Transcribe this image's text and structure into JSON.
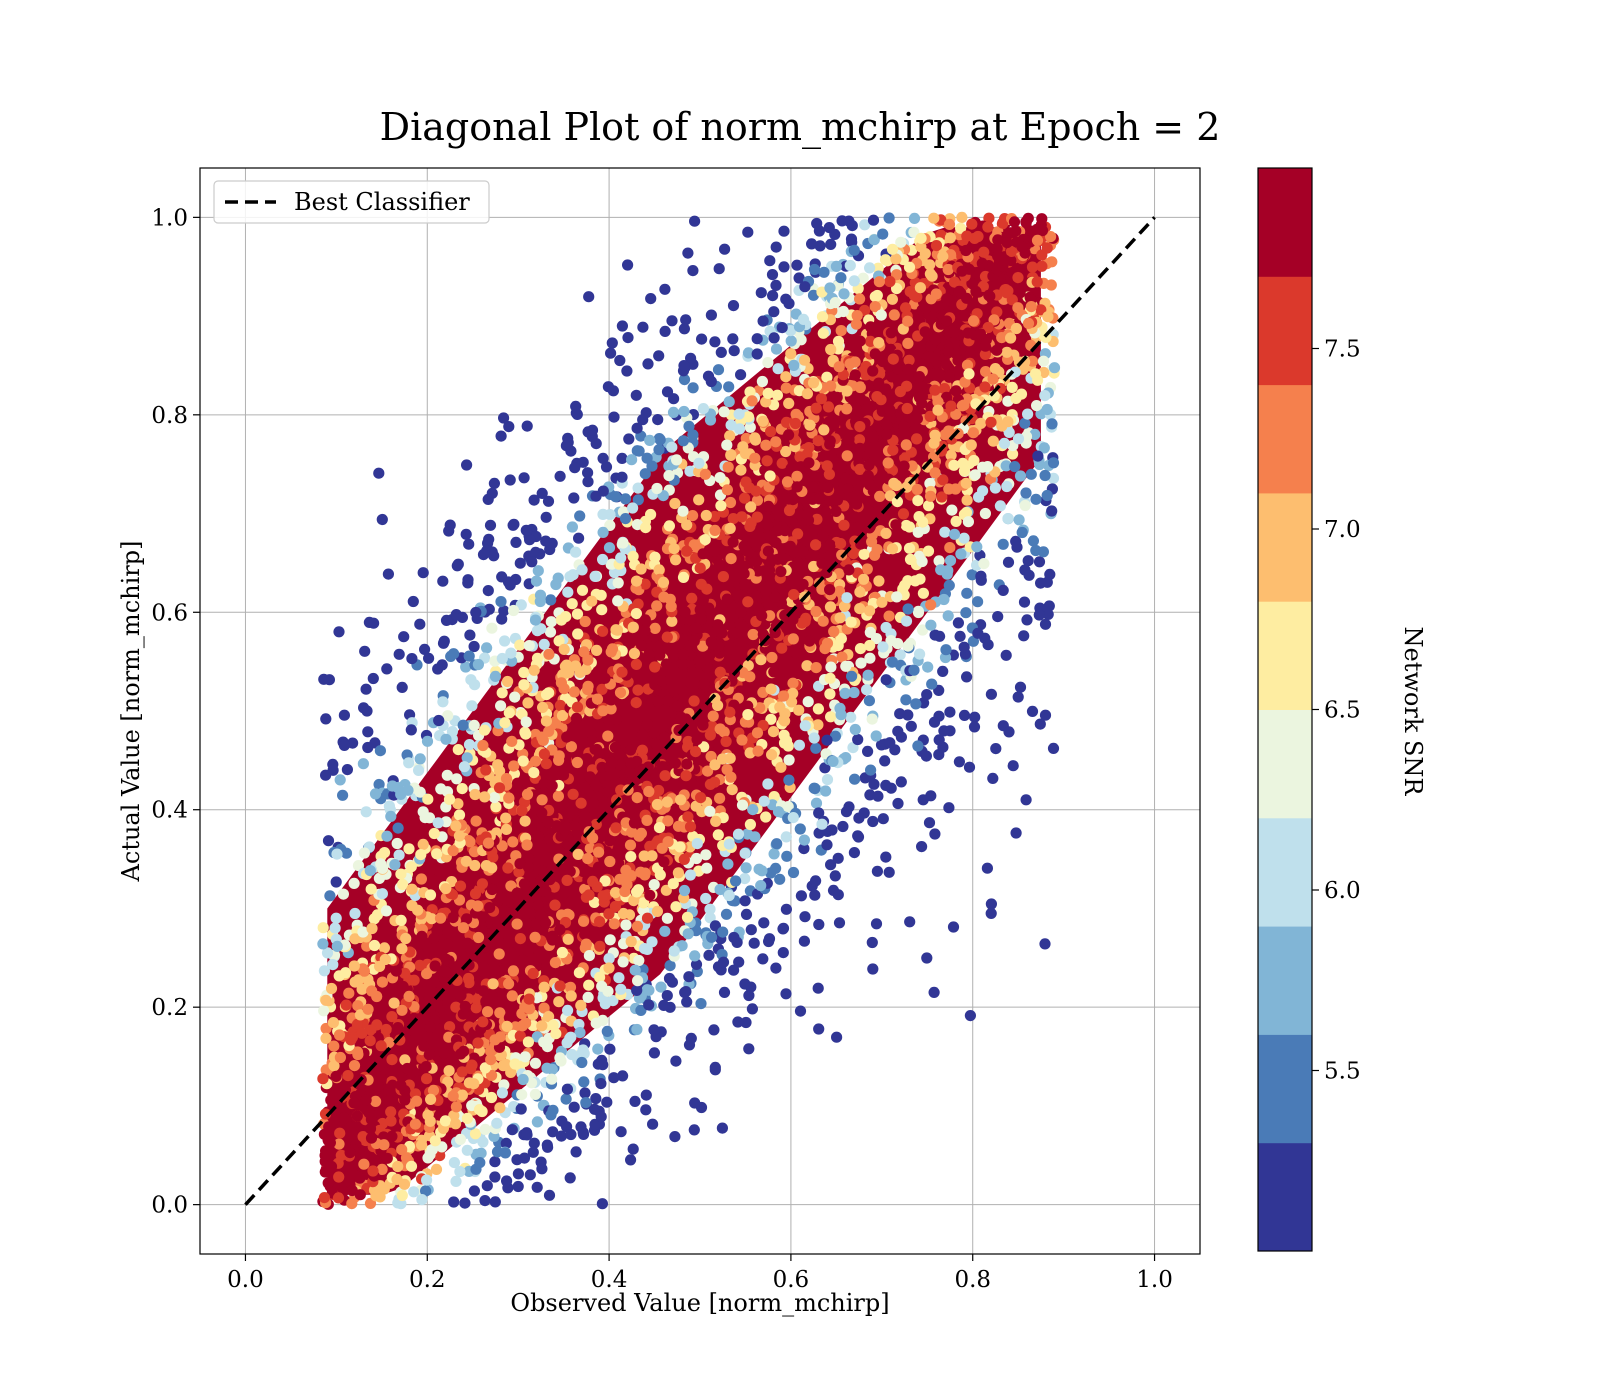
{
  "chart_data": {
    "type": "scatter",
    "title": "Diagonal Plot of norm_mchirp at Epoch = 2",
    "xlabel": "Observed Value [norm_mchirp]",
    "ylabel": "Actual Value [norm_mchirp]",
    "xlim": [
      -0.05,
      1.05
    ],
    "ylim": [
      -0.05,
      1.05
    ],
    "xticks": [
      0.0,
      0.2,
      0.4,
      0.6,
      0.8,
      1.0
    ],
    "xtick_labels": [
      "0.0",
      "0.2",
      "0.4",
      "0.6",
      "0.8",
      "1.0"
    ],
    "yticks": [
      0.0,
      0.2,
      0.4,
      0.6,
      0.8,
      1.0
    ],
    "ytick_labels": [
      "0.0",
      "0.2",
      "0.4",
      "0.6",
      "0.8",
      "1.0"
    ],
    "grid": true,
    "legend": {
      "position": "upper-left",
      "entries": [
        {
          "label": "Best Classifier",
          "style": "dashed",
          "color": "#000000"
        }
      ]
    },
    "reference_line": {
      "name": "Best Classifier",
      "x": [
        0.0,
        1.0
      ],
      "y": [
        0.0,
        1.0
      ],
      "style": "dashed"
    },
    "scatter_description": {
      "points_per_bin_estimate": "dense cloud of tens of thousands of points",
      "x_range": [
        0.08,
        0.89
      ],
      "y_range": [
        0.0,
        1.0
      ],
      "high_snr_along_diagonal": true,
      "low_snr_at_edges": true
    },
    "colorbar": {
      "label": "Network SNR",
      "range": [
        5.0,
        8.0
      ],
      "ticks": [
        5.5,
        6.0,
        6.5,
        7.0,
        7.5
      ],
      "tick_labels": [
        "5.5",
        "6.0",
        "6.5",
        "7.0",
        "7.5"
      ],
      "colormap": "RdYlBu_r",
      "levels": [
        {
          "from": 5.0,
          "to": 5.3,
          "color": "#313695"
        },
        {
          "from": 5.3,
          "to": 5.6,
          "color": "#4a7bb7"
        },
        {
          "from": 5.6,
          "to": 5.9,
          "color": "#81b5d6"
        },
        {
          "from": 5.9,
          "to": 6.2,
          "color": "#bfe0ec"
        },
        {
          "from": 6.2,
          "to": 6.5,
          "color": "#ebf5df"
        },
        {
          "from": 6.5,
          "to": 6.8,
          "color": "#feeda1"
        },
        {
          "from": 6.8,
          "to": 7.1,
          "color": "#fdbe6f"
        },
        {
          "from": 7.1,
          "to": 7.4,
          "color": "#f5804d"
        },
        {
          "from": 7.4,
          "to": 7.7,
          "color": "#db392c"
        },
        {
          "from": 7.7,
          "to": 8.0,
          "color": "#a50026"
        }
      ]
    }
  }
}
